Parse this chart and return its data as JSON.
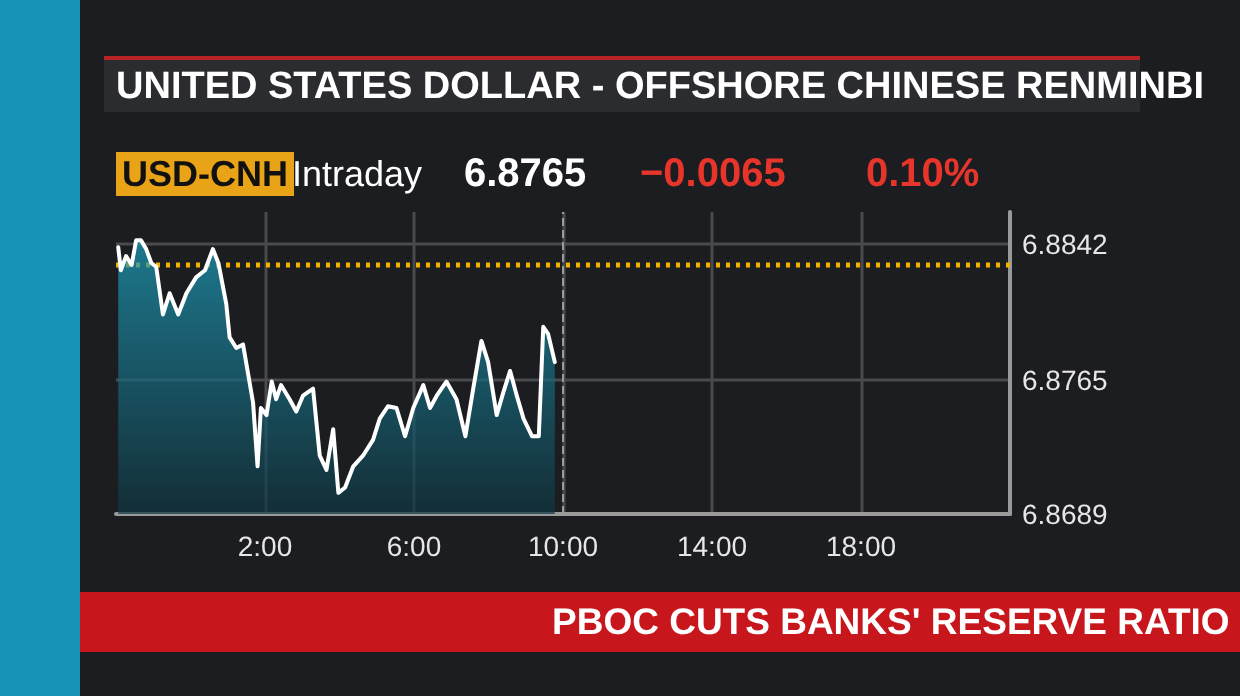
{
  "chart_data": {
    "type": "area",
    "title": "UNITED STATES DOLLAR - OFFSHORE CHINESE RENMINBI",
    "annotations": [
      "USD-CNH",
      "Intraday",
      "6.8765",
      "−0.0065",
      "0.10%",
      "PBOC CUTS BANKS' RESERVE RATIO"
    ],
    "x": [
      -1.94,
      -1.87,
      -1.73,
      -1.58,
      -1.46,
      -1.33,
      -1.19,
      -1.05,
      -0.92,
      -0.74,
      -0.56,
      -0.33,
      -0.11,
      0.15,
      0.39,
      0.6,
      0.75,
      0.96,
      1.05,
      1.23,
      1.41,
      1.68,
      1.8,
      1.89,
      2.04,
      2.18,
      2.3,
      2.43,
      2.66,
      2.84,
      3.02,
      3.29,
      3.47,
      3.65,
      3.83,
      3.97,
      4.15,
      4.37,
      4.63,
      4.9,
      5.08,
      5.3,
      5.53,
      5.76,
      5.98,
      6.25,
      6.43,
      6.61,
      6.87,
      7.14,
      7.38,
      7.59,
      7.81,
      7.99,
      8.22,
      8.4,
      8.58,
      8.76,
      8.94,
      9.17,
      9.35,
      9.47,
      9.6,
      9.78
    ],
    "series": [
      {
        "color": "#ffffff",
        "values": [
          6.884,
          6.8827,
          6.8835,
          6.883,
          6.8844,
          6.8844,
          6.8839,
          6.8831,
          6.8829,
          6.8802,
          6.8814,
          6.8802,
          6.8814,
          6.8823,
          6.8827,
          6.8839,
          6.8831,
          6.8808,
          6.8789,
          6.8783,
          6.8785,
          6.8752,
          6.8716,
          6.8749,
          6.8745,
          6.8764,
          6.8754,
          6.8762,
          6.8754,
          6.8747,
          6.8756,
          6.876,
          6.8722,
          6.8714,
          6.8737,
          6.8701,
          6.8704,
          6.8716,
          6.8722,
          6.8731,
          6.8743,
          6.875,
          6.8749,
          6.8733,
          6.8749,
          6.8762,
          6.8749,
          6.8756,
          6.8764,
          6.8754,
          6.8733,
          6.876,
          6.8787,
          6.8775,
          6.8745,
          6.8758,
          6.877,
          6.8756,
          6.8743,
          6.8733,
          6.8733,
          6.8795,
          6.8791,
          6.8775
        ]
      }
    ],
    "xlim": [
      -2,
      22
    ],
    "xticks": [
      {
        "value": 2,
        "label": "2:00"
      },
      {
        "value": 6,
        "label": "6:00"
      },
      {
        "value": 10,
        "label": "10:00"
      },
      {
        "value": 14,
        "label": "14:00"
      },
      {
        "value": 18,
        "label": "18:00"
      }
    ],
    "ylim": [
      6.8689,
      6.886
    ],
    "yticks": [
      6.8689,
      6.8765,
      6.8842
    ],
    "ref_lines": [
      {
        "axis": "y",
        "value": 6.883,
        "color": "#f0b400",
        "line_style": "dotted"
      },
      {
        "axis": "x",
        "value": 10,
        "color": "#9a9a9a",
        "line_style": "dashed"
      }
    ],
    "grid": true,
    "marker": "none",
    "line_style": "solid"
  }
}
